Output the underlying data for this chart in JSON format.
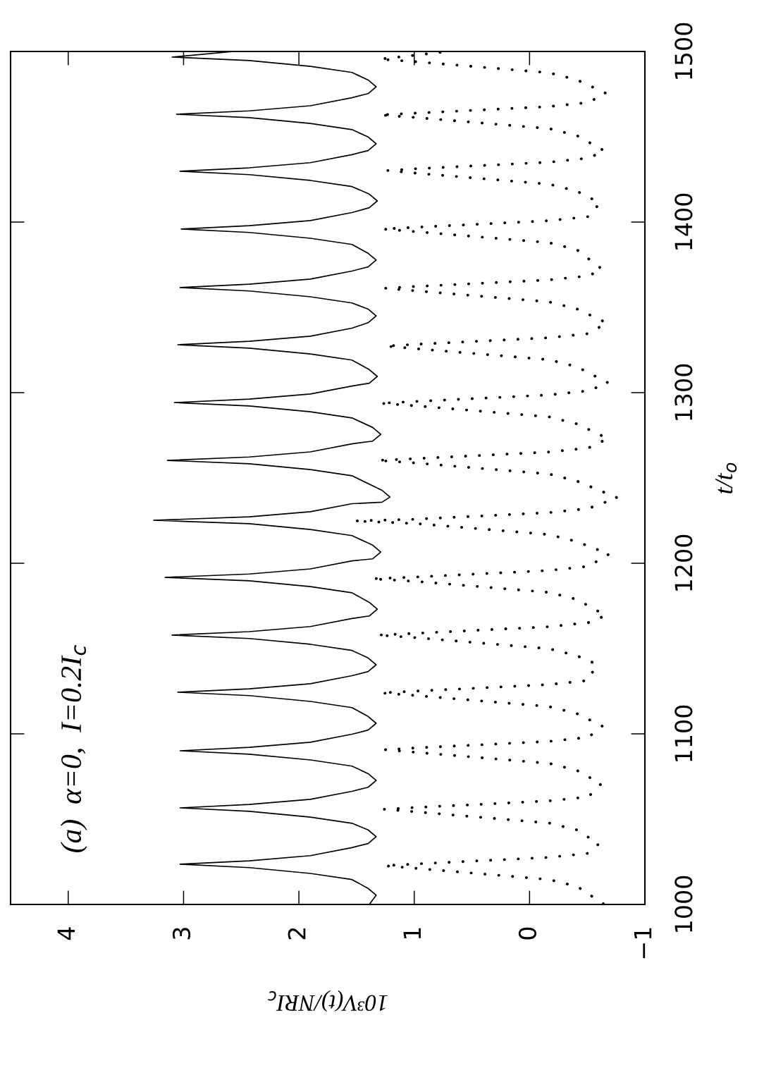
{
  "chart_data": {
    "type": "line",
    "xlabel": "10³V(t)/NRI$_{c}$",
    "ylabel": "t/t$_{o}$",
    "annotations": [
      "(a)  α=0,  I=0.2I$_{c}$"
    ],
    "xlim": [
      4.5,
      -1
    ],
    "xticks": [
      -1,
      0,
      1,
      2,
      3,
      4
    ],
    "ylim": [
      1000,
      1500
    ],
    "yticks": [
      1000,
      1100,
      1200,
      1300,
      1400,
      1500
    ],
    "grid": false,
    "series": [
      {
        "color": "#000000",
        "line_style": "solid",
        "values": [
          1000,
          1005.4,
          1009.4,
          1014.6,
          1018.2,
          1021.6,
          1023.6,
          1025.6,
          1028.6,
          1033.3,
          1035.7,
          1039.7,
          1043.7,
          1047.6,
          1051.2,
          1054.6,
          1056.6,
          1058.6,
          1061.6,
          1066.3,
          1068.7,
          1072.7,
          1076.7,
          1081.1,
          1084.7,
          1088.1,
          1090.1,
          1092.1,
          1095.1,
          1099.8,
          1102.2,
          1106.2,
          1110.2,
          1115.4,
          1119.0,
          1122.4,
          1124.4,
          1126.4,
          1129.4,
          1134.1,
          1136.5,
          1140.5,
          1144.5,
          1148.9,
          1152.5,
          1155.9,
          1157.9,
          1159.9,
          1162.9,
          1167.6,
          1169.1,
          1173.1,
          1177.1,
          1182.7,
          1186.3,
          1189.7,
          1191.7,
          1193.7,
          1196.7,
          1201.4,
          1202.6,
          1206.6,
          1210.6,
          1216.2,
          1219.8,
          1223.2,
          1225.2,
          1227.2,
          1230.2,
          1234.9,
          1235.8,
          1238.8,
          1242.8,
          1251.3,
          1254.9,
          1258.3,
          1260.3,
          1262.3,
          1265.3,
          1270.0,
          1271.6,
          1275.6,
          1279.6,
          1285.2,
          1288.8,
          1292.2,
          1294.2,
          1296.2,
          1299.2,
          1303.9,
          1305.5,
          1309.5,
          1313.5,
          1319.1,
          1322.7,
          1326.1,
          1328.1,
          1330.1,
          1333.1,
          1337.8,
          1341.0,
          1345.0,
          1349.0,
          1352.6,
          1356.2,
          1359.6,
          1361.6,
          1363.6,
          1366.6,
          1371.3,
          1373.7,
          1377.7,
          1381.7,
          1386.9,
          1390.5,
          1393.9,
          1395.9,
          1397.9,
          1400.9,
          1405.6,
          1408.4,
          1412.4,
          1416.4,
          1420.8,
          1424.4,
          1427.8,
          1429.8,
          1431.8,
          1434.8,
          1439.5,
          1441.9,
          1445.9,
          1449.9,
          1454.2,
          1457.8,
          1461.2,
          1463.2,
          1465.2,
          1468.2,
          1472.9,
          1475.3,
          1479.3,
          1483.3,
          1487.7,
          1491.3,
          1494.7,
          1496.7,
          1500
        ],
        "x": [
          1.39,
          1.33,
          1.4,
          1.54,
          1.9,
          2.43,
          3.03,
          2.43,
          1.9,
          1.54,
          1.4,
          1.33,
          1.4,
          1.54,
          1.9,
          2.43,
          3.03,
          2.43,
          1.9,
          1.54,
          1.4,
          1.33,
          1.4,
          1.54,
          1.9,
          2.43,
          3.03,
          2.43,
          1.9,
          1.54,
          1.4,
          1.33,
          1.4,
          1.54,
          1.9,
          2.43,
          3.05,
          2.43,
          1.9,
          1.54,
          1.4,
          1.33,
          1.4,
          1.54,
          1.9,
          2.43,
          3.1,
          2.43,
          1.9,
          1.54,
          1.39,
          1.32,
          1.39,
          1.54,
          1.9,
          2.43,
          3.16,
          2.43,
          1.9,
          1.54,
          1.36,
          1.29,
          1.36,
          1.54,
          1.9,
          2.43,
          3.26,
          2.43,
          1.9,
          1.54,
          1.28,
          1.21,
          1.28,
          1.54,
          1.9,
          2.43,
          3.14,
          2.43,
          1.9,
          1.54,
          1.36,
          1.29,
          1.36,
          1.54,
          1.9,
          2.43,
          3.08,
          2.43,
          1.9,
          1.54,
          1.39,
          1.32,
          1.39,
          1.54,
          1.9,
          2.43,
          3.05,
          2.43,
          1.9,
          1.54,
          1.4,
          1.33,
          1.4,
          1.54,
          1.9,
          2.43,
          3.03,
          2.43,
          1.9,
          1.54,
          1.4,
          1.33,
          1.4,
          1.54,
          1.9,
          2.43,
          3.02,
          2.43,
          1.9,
          1.54,
          1.39,
          1.32,
          1.39,
          1.54,
          1.9,
          2.43,
          3.03,
          2.43,
          1.9,
          1.54,
          1.4,
          1.33,
          1.4,
          1.54,
          1.9,
          2.43,
          3.06,
          2.43,
          1.9,
          1.54,
          1.4,
          1.33,
          1.4,
          1.54,
          1.9,
          2.43,
          3.1,
          2.57
        ]
      },
      {
        "color": "#000000",
        "line_style": "dotted",
        "values": [
          1000.4,
          1010.6,
          1014.6,
          1021.2,
          1022.7,
          1023.7,
          1027.6,
          1030.0,
          1035.5,
          1043.7,
          1047.7,
          1054.3,
          1055.8,
          1056.8,
          1060.7,
          1063.1,
          1070.7,
          1078.6,
          1082.7,
          1089.2,
          1090.7,
          1091.7,
          1095.6,
          1098.0,
          1104.5,
          1111.9,
          1116.0,
          1122.5,
          1124.0,
          1125.0,
          1128.9,
          1131.3,
          1140.9,
          1145.8,
          1149.9,
          1156.4,
          1157.9,
          1158.9,
          1162.8,
          1165.2,
          1169.4,
          1178.8,
          1182.9,
          1189.4,
          1190.9,
          1191.9,
          1195.8,
          1198.2,
          1205.4,
          1212.7,
          1216.8,
          1223.3,
          1224.8,
          1225.8,
          1229.7,
          1232.1,
          1238.4,
          1248.2,
          1252.3,
          1258.8,
          1260.3,
          1261.3,
          1265.2,
          1267.6,
          1273.1,
          1281.7,
          1285.8,
          1292.3,
          1293.8,
          1294.8,
          1298.7,
          1301.1,
          1305.8,
          1315.2,
          1319.3,
          1325.8,
          1327.3,
          1328.3,
          1332.2,
          1334.6,
          1340.9,
          1349.1,
          1353.2,
          1359.7,
          1361.2,
          1362.2,
          1366.1,
          1368.5,
          1372.3,
          1383.8,
          1387.9,
          1394.4,
          1395.9,
          1396.9,
          1400.8,
          1403.2,
          1411.2,
          1418.1,
          1422.2,
          1428.7,
          1430.2,
          1431.2,
          1435.1,
          1437.5,
          1441.7,
          1450.7,
          1454.8,
          1461.3,
          1462.8,
          1463.8,
          1467.7,
          1470.1,
          1475.6,
          1483.4,
          1487.5,
          1494.0,
          1495.5,
          1500
        ],
        "x": [
          -0.64,
          -0.41,
          -0.17,
          0.99,
          1.26,
          1.0,
          -0.17,
          -0.51,
          -0.6,
          -0.41,
          -0.17,
          0.99,
          1.26,
          1.0,
          -0.17,
          -0.51,
          -0.62,
          -0.41,
          -0.17,
          0.99,
          1.25,
          1.0,
          -0.17,
          -0.51,
          -0.63,
          -0.41,
          -0.17,
          0.99,
          1.29,
          1.0,
          -0.17,
          -0.51,
          -0.58,
          -0.41,
          -0.17,
          0.99,
          1.32,
          1.0,
          -0.17,
          -0.51,
          -0.66,
          -0.41,
          -0.17,
          0.99,
          1.37,
          1.0,
          -0.17,
          -0.51,
          -0.69,
          -0.41,
          -0.17,
          0.99,
          1.52,
          1.0,
          -0.17,
          -0.51,
          -0.76,
          -0.41,
          -0.17,
          0.99,
          1.32,
          1.0,
          -0.17,
          -0.51,
          -0.68,
          -0.41,
          -0.17,
          0.99,
          1.3,
          1.0,
          -0.17,
          -0.51,
          -0.68,
          -0.41,
          -0.17,
          0.99,
          1.25,
          1.0,
          -0.17,
          -0.51,
          -0.67,
          -0.41,
          -0.17,
          0.99,
          1.25,
          1.0,
          -0.17,
          -0.51,
          -0.63,
          -0.41,
          -0.17,
          0.99,
          1.27,
          1.0,
          -0.17,
          -0.51,
          -0.61,
          -0.41,
          -0.17,
          0.99,
          1.23,
          1.0,
          -0.17,
          -0.51,
          -0.65,
          -0.41,
          -0.17,
          0.99,
          1.3,
          1.0,
          -0.17,
          -0.51,
          -0.66,
          -0.41,
          -0.17,
          0.99,
          1.3,
          0.7
        ]
      }
    ]
  }
}
